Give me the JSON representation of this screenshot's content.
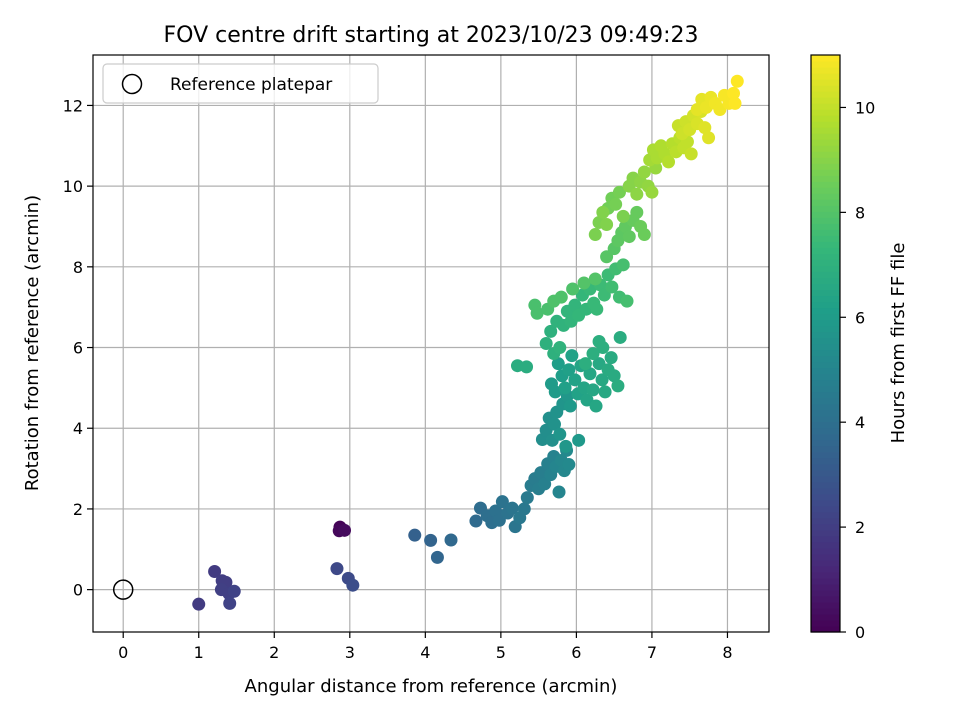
{
  "chart_data": {
    "type": "scatter",
    "title": "FOV centre drift starting at 2023/10/23 09:49:23",
    "xlabel": "Angular distance from reference (arcmin)",
    "ylabel": "Rotation from reference (arcmin)",
    "xlim": [
      -0.4,
      8.55
    ],
    "ylim": [
      -1.05,
      13.25
    ],
    "xticks": [
      0,
      1,
      2,
      3,
      4,
      5,
      6,
      7,
      8
    ],
    "yticks": [
      0,
      2,
      4,
      6,
      8,
      10,
      12
    ],
    "grid": true,
    "legend": {
      "location": "upper-left",
      "entries": [
        {
          "label": "Reference platepar",
          "marker": "open-circle"
        }
      ]
    },
    "reference_point": {
      "x": 0,
      "y": 0
    },
    "colorbar": {
      "label": "Hours from first FF file",
      "colormap": "viridis",
      "range": [
        0,
        11
      ],
      "ticks": [
        0,
        2,
        4,
        6,
        8,
        10
      ]
    },
    "series": [
      {
        "color_by": "hours",
        "points": [
          {
            "x": 2.87,
            "y": 1.55,
            "c": 0.1
          },
          {
            "x": 2.86,
            "y": 1.46,
            "c": 0.2
          },
          {
            "x": 2.93,
            "y": 1.47,
            "c": 0.3
          },
          {
            "x": 1.0,
            "y": -0.36,
            "c": 1.9
          },
          {
            "x": 1.21,
            "y": 0.45,
            "c": 1.9
          },
          {
            "x": 1.31,
            "y": 0.22,
            "c": 2.0
          },
          {
            "x": 1.36,
            "y": 0.18,
            "c": 2.0
          },
          {
            "x": 1.3,
            "y": 0.0,
            "c": 2.1
          },
          {
            "x": 1.4,
            "y": -0.1,
            "c": 2.1
          },
          {
            "x": 1.41,
            "y": -0.34,
            "c": 2.2
          },
          {
            "x": 1.47,
            "y": -0.04,
            "c": 2.2
          },
          {
            "x": 2.83,
            "y": 0.52,
            "c": 2.4
          },
          {
            "x": 2.98,
            "y": 0.28,
            "c": 2.5
          },
          {
            "x": 3.04,
            "y": 0.11,
            "c": 2.6
          },
          {
            "x": 3.86,
            "y": 1.35,
            "c": 3.4
          },
          {
            "x": 4.07,
            "y": 1.22,
            "c": 3.5
          },
          {
            "x": 4.16,
            "y": 0.8,
            "c": 3.6
          },
          {
            "x": 4.34,
            "y": 1.23,
            "c": 3.7
          },
          {
            "x": 4.67,
            "y": 1.7,
            "c": 3.8
          },
          {
            "x": 4.73,
            "y": 2.02,
            "c": 3.9
          },
          {
            "x": 4.82,
            "y": 1.83,
            "c": 4.0
          },
          {
            "x": 4.88,
            "y": 1.66,
            "c": 4.0
          },
          {
            "x": 4.93,
            "y": 1.95,
            "c": 4.1
          },
          {
            "x": 4.98,
            "y": 1.72,
            "c": 4.1
          },
          {
            "x": 5.02,
            "y": 2.18,
            "c": 4.2
          },
          {
            "x": 5.09,
            "y": 1.9,
            "c": 4.2
          },
          {
            "x": 5.15,
            "y": 2.02,
            "c": 4.3
          },
          {
            "x": 5.19,
            "y": 1.56,
            "c": 4.3
          },
          {
            "x": 5.25,
            "y": 1.78,
            "c": 4.4
          },
          {
            "x": 5.31,
            "y": 2.0,
            "c": 4.4
          },
          {
            "x": 5.35,
            "y": 2.28,
            "c": 4.5
          },
          {
            "x": 5.4,
            "y": 2.58,
            "c": 4.6
          },
          {
            "x": 5.45,
            "y": 2.75,
            "c": 4.6
          },
          {
            "x": 5.5,
            "y": 2.5,
            "c": 4.7
          },
          {
            "x": 5.53,
            "y": 2.9,
            "c": 4.7
          },
          {
            "x": 5.58,
            "y": 2.62,
            "c": 4.8
          },
          {
            "x": 5.62,
            "y": 3.12,
            "c": 4.8
          },
          {
            "x": 5.66,
            "y": 2.85,
            "c": 4.9
          },
          {
            "x": 5.7,
            "y": 3.3,
            "c": 4.9
          },
          {
            "x": 5.73,
            "y": 3.05,
            "c": 5.0
          },
          {
            "x": 5.77,
            "y": 2.42,
            "c": 5.0
          },
          {
            "x": 5.8,
            "y": 3.2,
            "c": 5.1
          },
          {
            "x": 5.84,
            "y": 2.95,
            "c": 5.1
          },
          {
            "x": 5.87,
            "y": 3.45,
            "c": 5.2
          },
          {
            "x": 5.9,
            "y": 3.1,
            "c": 5.2
          },
          {
            "x": 5.55,
            "y": 3.72,
            "c": 5.4
          },
          {
            "x": 5.6,
            "y": 3.95,
            "c": 5.4
          },
          {
            "x": 5.64,
            "y": 4.25,
            "c": 5.5
          },
          {
            "x": 5.68,
            "y": 3.7,
            "c": 5.5
          },
          {
            "x": 5.71,
            "y": 4.1,
            "c": 5.6
          },
          {
            "x": 5.74,
            "y": 4.4,
            "c": 5.6
          },
          {
            "x": 5.78,
            "y": 3.85,
            "c": 5.7
          },
          {
            "x": 5.82,
            "y": 4.6,
            "c": 5.7
          },
          {
            "x": 5.86,
            "y": 3.55,
            "c": 5.8
          },
          {
            "x": 5.88,
            "y": 4.8,
            "c": 5.8
          },
          {
            "x": 5.92,
            "y": 4.55,
            "c": 5.9
          },
          {
            "x": 6.03,
            "y": 3.7,
            "c": 5.9
          },
          {
            "x": 5.67,
            "y": 5.1,
            "c": 6.0
          },
          {
            "x": 5.72,
            "y": 4.9,
            "c": 6.0
          },
          {
            "x": 5.76,
            "y": 5.6,
            "c": 6.1
          },
          {
            "x": 5.81,
            "y": 5.3,
            "c": 6.1
          },
          {
            "x": 5.85,
            "y": 5.0,
            "c": 6.2
          },
          {
            "x": 5.9,
            "y": 5.45,
            "c": 6.2
          },
          {
            "x": 5.94,
            "y": 5.8,
            "c": 6.3
          },
          {
            "x": 5.98,
            "y": 5.2,
            "c": 6.3
          },
          {
            "x": 6.02,
            "y": 4.85,
            "c": 6.3
          },
          {
            "x": 6.06,
            "y": 5.55,
            "c": 6.4
          },
          {
            "x": 6.1,
            "y": 5.0,
            "c": 6.4
          },
          {
            "x": 6.14,
            "y": 4.7,
            "c": 6.4
          },
          {
            "x": 6.18,
            "y": 5.35,
            "c": 6.5
          },
          {
            "x": 6.22,
            "y": 4.95,
            "c": 6.5
          },
          {
            "x": 6.26,
            "y": 4.55,
            "c": 6.5
          },
          {
            "x": 6.3,
            "y": 5.6,
            "c": 6.6
          },
          {
            "x": 6.34,
            "y": 5.2,
            "c": 6.6
          },
          {
            "x": 6.38,
            "y": 4.9,
            "c": 6.6
          },
          {
            "x": 6.42,
            "y": 5.45,
            "c": 6.7
          },
          {
            "x": 6.46,
            "y": 5.75,
            "c": 6.7
          },
          {
            "x": 6.5,
            "y": 5.3,
            "c": 6.7
          },
          {
            "x": 6.55,
            "y": 5.05,
            "c": 6.8
          },
          {
            "x": 6.58,
            "y": 6.25,
            "c": 6.8
          },
          {
            "x": 6.3,
            "y": 6.15,
            "c": 6.9
          },
          {
            "x": 6.35,
            "y": 6.0,
            "c": 6.9
          },
          {
            "x": 6.22,
            "y": 5.85,
            "c": 6.9
          },
          {
            "x": 6.12,
            "y": 5.6,
            "c": 6.9
          },
          {
            "x": 5.22,
            "y": 5.55,
            "c": 6.8
          },
          {
            "x": 5.34,
            "y": 5.52,
            "c": 6.8
          },
          {
            "x": 5.6,
            "y": 6.1,
            "c": 7.0
          },
          {
            "x": 5.66,
            "y": 6.4,
            "c": 7.0
          },
          {
            "x": 5.7,
            "y": 5.85,
            "c": 7.0
          },
          {
            "x": 5.74,
            "y": 6.65,
            "c": 7.1
          },
          {
            "x": 5.78,
            "y": 6.0,
            "c": 7.1
          },
          {
            "x": 5.83,
            "y": 6.55,
            "c": 7.1
          },
          {
            "x": 5.88,
            "y": 6.9,
            "c": 7.2
          },
          {
            "x": 5.93,
            "y": 6.65,
            "c": 7.2
          },
          {
            "x": 5.98,
            "y": 7.05,
            "c": 7.2
          },
          {
            "x": 6.03,
            "y": 6.8,
            "c": 7.3
          },
          {
            "x": 6.08,
            "y": 7.3,
            "c": 7.3
          },
          {
            "x": 6.13,
            "y": 6.95,
            "c": 7.3
          },
          {
            "x": 6.18,
            "y": 7.45,
            "c": 7.4
          },
          {
            "x": 6.23,
            "y": 7.1,
            "c": 7.4
          },
          {
            "x": 6.27,
            "y": 6.95,
            "c": 7.4
          },
          {
            "x": 6.32,
            "y": 7.55,
            "c": 7.5
          },
          {
            "x": 6.37,
            "y": 7.3,
            "c": 7.5
          },
          {
            "x": 6.42,
            "y": 7.8,
            "c": 7.5
          },
          {
            "x": 6.47,
            "y": 7.5,
            "c": 7.6
          },
          {
            "x": 6.52,
            "y": 7.95,
            "c": 7.6
          },
          {
            "x": 6.57,
            "y": 7.25,
            "c": 7.6
          },
          {
            "x": 6.62,
            "y": 8.05,
            "c": 7.7
          },
          {
            "x": 6.67,
            "y": 7.15,
            "c": 7.7
          },
          {
            "x": 5.45,
            "y": 7.05,
            "c": 7.8
          },
          {
            "x": 5.48,
            "y": 6.85,
            "c": 7.8
          },
          {
            "x": 5.62,
            "y": 6.95,
            "c": 7.8
          },
          {
            "x": 5.7,
            "y": 7.15,
            "c": 7.9
          },
          {
            "x": 5.8,
            "y": 7.25,
            "c": 7.9
          },
          {
            "x": 5.95,
            "y": 7.45,
            "c": 7.9
          },
          {
            "x": 6.1,
            "y": 7.6,
            "c": 8.0
          },
          {
            "x": 6.25,
            "y": 7.7,
            "c": 8.0
          },
          {
            "x": 6.4,
            "y": 8.25,
            "c": 8.1
          },
          {
            "x": 6.5,
            "y": 8.45,
            "c": 8.1
          },
          {
            "x": 6.55,
            "y": 8.65,
            "c": 8.2
          },
          {
            "x": 6.6,
            "y": 8.85,
            "c": 8.2
          },
          {
            "x": 6.65,
            "y": 9.0,
            "c": 8.3
          },
          {
            "x": 6.7,
            "y": 8.75,
            "c": 8.3
          },
          {
            "x": 6.75,
            "y": 9.15,
            "c": 8.4
          },
          {
            "x": 6.8,
            "y": 9.35,
            "c": 8.4
          },
          {
            "x": 6.85,
            "y": 9.0,
            "c": 8.5
          },
          {
            "x": 6.9,
            "y": 8.8,
            "c": 8.5
          },
          {
            "x": 6.42,
            "y": 9.45,
            "c": 8.6
          },
          {
            "x": 6.47,
            "y": 9.7,
            "c": 8.6
          },
          {
            "x": 6.52,
            "y": 9.55,
            "c": 8.7
          },
          {
            "x": 6.57,
            "y": 9.85,
            "c": 8.7
          },
          {
            "x": 6.62,
            "y": 9.25,
            "c": 8.8
          },
          {
            "x": 6.3,
            "y": 9.1,
            "c": 8.8
          },
          {
            "x": 6.25,
            "y": 8.8,
            "c": 8.8
          },
          {
            "x": 6.35,
            "y": 9.35,
            "c": 8.9
          },
          {
            "x": 6.4,
            "y": 9.05,
            "c": 8.9
          },
          {
            "x": 6.7,
            "y": 10.0,
            "c": 9.0
          },
          {
            "x": 6.75,
            "y": 10.2,
            "c": 9.0
          },
          {
            "x": 6.8,
            "y": 9.8,
            "c": 9.1
          },
          {
            "x": 6.85,
            "y": 10.1,
            "c": 9.1
          },
          {
            "x": 6.9,
            "y": 10.35,
            "c": 9.2
          },
          {
            "x": 6.95,
            "y": 10.0,
            "c": 9.2
          },
          {
            "x": 7.0,
            "y": 9.85,
            "c": 9.3
          },
          {
            "x": 7.05,
            "y": 10.45,
            "c": 9.3
          },
          {
            "x": 6.97,
            "y": 10.65,
            "c": 9.5
          },
          {
            "x": 7.02,
            "y": 10.9,
            "c": 9.6
          },
          {
            "x": 7.07,
            "y": 10.7,
            "c": 9.6
          },
          {
            "x": 7.12,
            "y": 11.0,
            "c": 9.7
          },
          {
            "x": 7.17,
            "y": 10.8,
            "c": 9.7
          },
          {
            "x": 7.22,
            "y": 10.6,
            "c": 9.8
          },
          {
            "x": 7.27,
            "y": 11.05,
            "c": 9.8
          },
          {
            "x": 7.32,
            "y": 10.85,
            "c": 9.9
          },
          {
            "x": 7.37,
            "y": 11.2,
            "c": 9.9
          },
          {
            "x": 7.42,
            "y": 10.95,
            "c": 10.0
          },
          {
            "x": 7.47,
            "y": 11.1,
            "c": 10.0
          },
          {
            "x": 7.52,
            "y": 10.8,
            "c": 10.1
          },
          {
            "x": 7.35,
            "y": 11.5,
            "c": 10.1
          },
          {
            "x": 7.4,
            "y": 11.3,
            "c": 10.2
          },
          {
            "x": 7.45,
            "y": 11.6,
            "c": 10.2
          },
          {
            "x": 7.5,
            "y": 11.4,
            "c": 10.3
          },
          {
            "x": 7.55,
            "y": 11.75,
            "c": 10.3
          },
          {
            "x": 7.6,
            "y": 11.55,
            "c": 10.4
          },
          {
            "x": 7.65,
            "y": 11.85,
            "c": 10.4
          },
          {
            "x": 7.7,
            "y": 11.45,
            "c": 10.5
          },
          {
            "x": 7.75,
            "y": 11.2,
            "c": 10.5
          },
          {
            "x": 7.6,
            "y": 11.9,
            "c": 10.6
          },
          {
            "x": 7.66,
            "y": 12.15,
            "c": 10.6
          },
          {
            "x": 7.72,
            "y": 11.95,
            "c": 10.7
          },
          {
            "x": 7.78,
            "y": 12.2,
            "c": 10.7
          },
          {
            "x": 7.84,
            "y": 12.05,
            "c": 10.8
          },
          {
            "x": 7.9,
            "y": 11.9,
            "c": 10.8
          },
          {
            "x": 7.96,
            "y": 12.25,
            "c": 10.9
          },
          {
            "x": 8.02,
            "y": 12.05,
            "c": 10.9
          },
          {
            "x": 8.08,
            "y": 12.3,
            "c": 11.0
          },
          {
            "x": 8.13,
            "y": 12.6,
            "c": 11.0
          },
          {
            "x": 8.1,
            "y": 12.05,
            "c": 11.0
          }
        ]
      }
    ]
  }
}
